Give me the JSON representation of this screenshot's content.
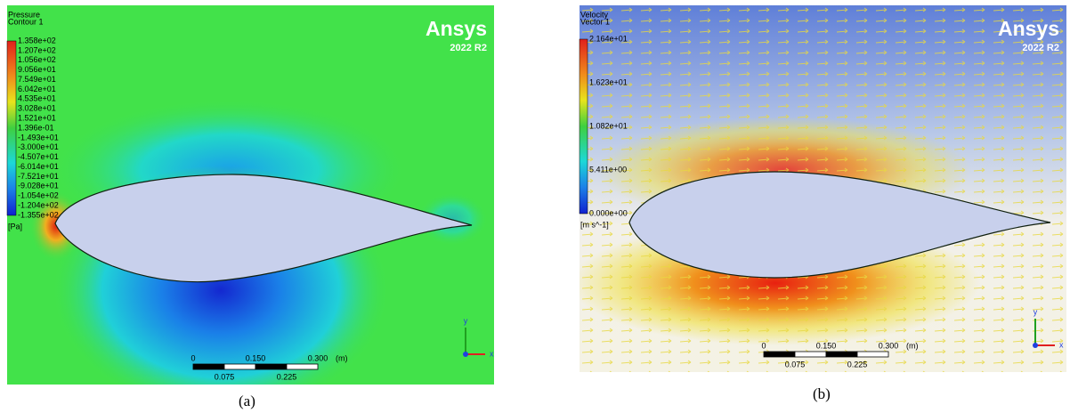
{
  "panels": [
    {
      "caption": "(a)",
      "legend": {
        "title": [
          "Pressure",
          "Contour 1"
        ],
        "labels": [
          "1.358e+02",
          "1.207e+02",
          "1.056e+02",
          "9.056e+01",
          "7.549e+01",
          "6.042e+01",
          "4.535e+01",
          "3.028e+01",
          "1.521e+01",
          "1.396e-01",
          "-1.493e+01",
          "-3.000e+01",
          "-4.507e+01",
          "-6.014e+01",
          "-7.521e+01",
          "-9.028e+01",
          "-1.054e+02",
          "-1.204e+02",
          "-1.355e+02"
        ],
        "unit": "[Pa]"
      },
      "logo": {
        "name": "Ansys",
        "version": "2022 R2"
      },
      "scale": {
        "top": [
          "0",
          "0.150",
          "0.300",
          "(m)"
        ],
        "bottom": [
          "0.075",
          "0.225"
        ]
      },
      "axes": [
        "y",
        "x"
      ]
    },
    {
      "caption": "(b)",
      "legend": {
        "title": [
          "Velocity",
          "Vector 1"
        ],
        "labels": [
          "2.164e+01",
          "1.623e+01",
          "1.082e+01",
          "5.411e+00",
          "0.000e+00"
        ],
        "unit": "[m s^-1]"
      },
      "logo": {
        "name": "Ansys",
        "version": "2022 R2"
      },
      "scale": {
        "top": [
          "0",
          "0.150",
          "0.300",
          "(m)"
        ],
        "bottom": [
          "0.075",
          "0.225"
        ]
      },
      "axes": [
        "y",
        "x"
      ]
    }
  ]
}
